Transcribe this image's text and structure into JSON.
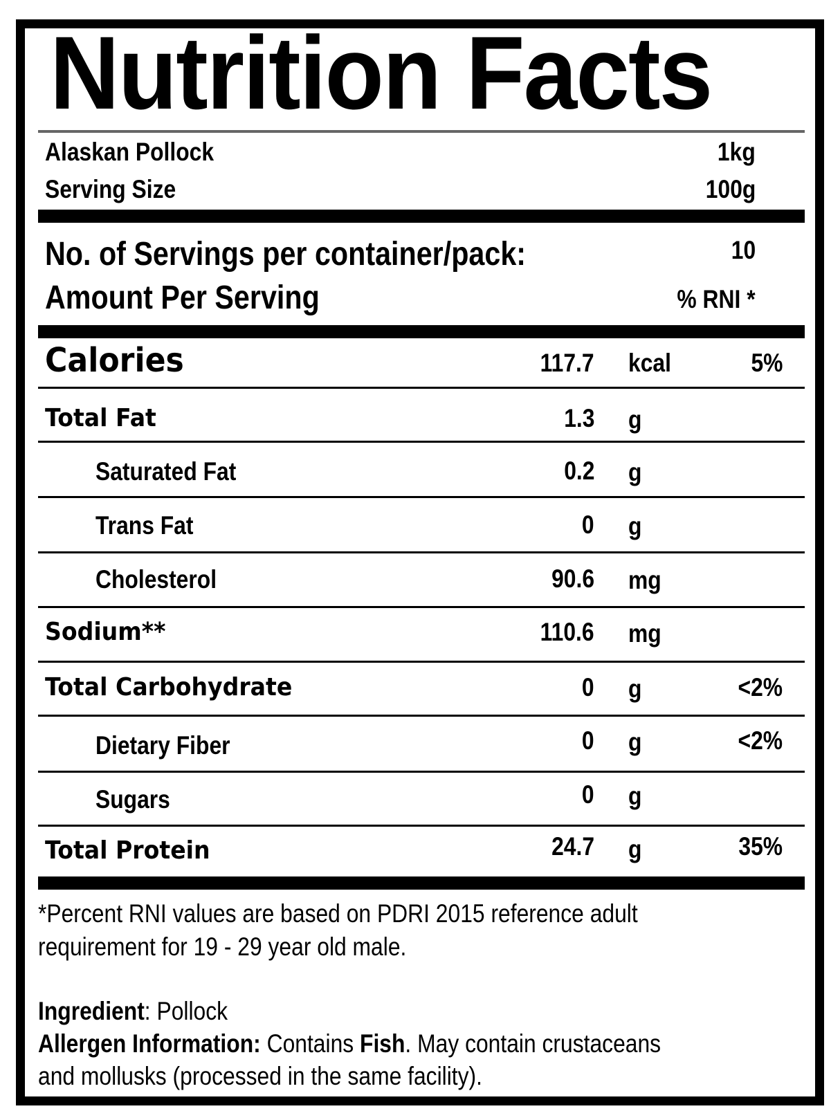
{
  "title": "Nutrition Facts",
  "product": {
    "name": "Alaskan Pollock",
    "net_weight": "1kg"
  },
  "serving": {
    "label": "Serving Size",
    "value": "100g"
  },
  "servings_per_container": {
    "label": "No. of Servings per container/pack:",
    "value": "10"
  },
  "amount_header": {
    "label": "Amount Per Serving",
    "rni_label": "% RNI *"
  },
  "nutrients": [
    {
      "name": "Calories",
      "value": "117.7",
      "unit": "kcal",
      "rni": "5%"
    },
    {
      "name": "Total Fat",
      "value": "1.3",
      "unit": "g",
      "rni": ""
    },
    {
      "name": "Saturated Fat",
      "value": "0.2",
      "unit": "g",
      "rni": ""
    },
    {
      "name": "Trans Fat",
      "value": "0",
      "unit": "g",
      "rni": ""
    },
    {
      "name": "Cholesterol",
      "value": "90.6",
      "unit": "mg",
      "rni": ""
    },
    {
      "name": "Sodium**",
      "value": "110.6",
      "unit": "mg",
      "rni": ""
    },
    {
      "name": "Total Carbohydrate",
      "value": "0",
      "unit": "g",
      "rni": "<2%"
    },
    {
      "name": "Dietary Fiber",
      "value": "0",
      "unit": "g",
      "rni": "<2%"
    },
    {
      "name": "Sugars",
      "value": "0",
      "unit": "g",
      "rni": ""
    },
    {
      "name": "Total Protein",
      "value": "24.7",
      "unit": "g",
      "rni": "35%"
    }
  ],
  "footnote": {
    "line1": "*Percent RNI values are based on PDRI 2015 reference adult",
    "line2": "requirement for 19 - 29 year old male."
  },
  "ingredient": {
    "label": "Ingredient",
    "sep": ": ",
    "value": "Pollock"
  },
  "allergen": {
    "label": "Allergen Information:",
    "text1": " Contains ",
    "bold": "Fish",
    "text2": ". May contain crustaceans",
    "line2": "and mollusks (processed in the same facility)."
  }
}
